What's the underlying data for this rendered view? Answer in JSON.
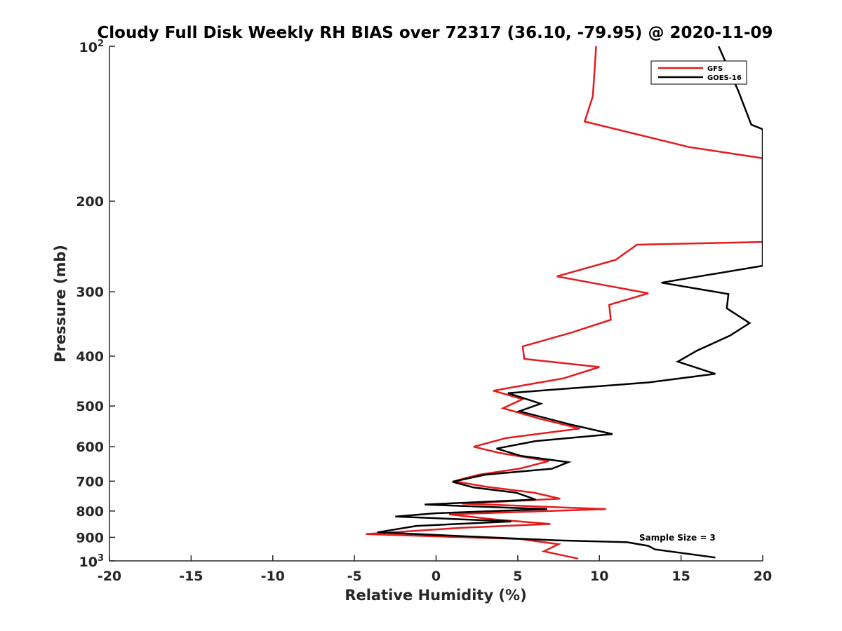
{
  "chart_data": {
    "type": "line",
    "title": "Cloudy Full Disk Weekly RH BIAS over 72317 (36.10, -79.95) @ 2020-11-09",
    "xlabel": "Relative Humidity (%)",
    "ylabel": "Pressure (mb)",
    "xlim": [
      -20,
      20
    ],
    "ylim": [
      100,
      1000
    ],
    "y_scale": "log",
    "y_reversed": true,
    "grid": false,
    "legend_position": "top-right",
    "x_ticks": [
      "-20",
      "-15",
      "-10",
      "-5",
      "0",
      "5",
      "10",
      "15",
      "20"
    ],
    "y_ticks": [
      {
        "value": 100,
        "base": "10",
        "exp": "2"
      },
      {
        "value": 200,
        "label": "200"
      },
      {
        "value": 300,
        "label": "300"
      },
      {
        "value": 400,
        "label": "400"
      },
      {
        "value": 500,
        "label": "500"
      },
      {
        "value": 600,
        "label": "600"
      },
      {
        "value": 700,
        "label": "700"
      },
      {
        "value": 800,
        "label": "800"
      },
      {
        "value": 900,
        "label": "900"
      },
      {
        "value": 1000,
        "base": "10",
        "exp": "3"
      }
    ],
    "series": [
      {
        "name": "GFS",
        "color": "#e41a1c",
        "points": [
          [
            9.8,
            100
          ],
          [
            9.6,
            125
          ],
          [
            9.1,
            140
          ],
          [
            15.5,
            157
          ],
          [
            20.0,
            165
          ],
          [
            20.0,
            240
          ],
          [
            12.3,
            243
          ],
          [
            11.0,
            260
          ],
          [
            7.4,
            280
          ],
          [
            13.0,
            302
          ],
          [
            10.6,
            318
          ],
          [
            10.7,
            340
          ],
          [
            8.3,
            360
          ],
          [
            5.3,
            383
          ],
          [
            5.4,
            405
          ],
          [
            10.0,
            420
          ],
          [
            7.8,
            442
          ],
          [
            5.5,
            455
          ],
          [
            3.5,
            467
          ],
          [
            5.3,
            485
          ],
          [
            4.1,
            505
          ],
          [
            6.4,
            530
          ],
          [
            8.8,
            553
          ],
          [
            4.3,
            577
          ],
          [
            2.3,
            600
          ],
          [
            3.9,
            617
          ],
          [
            6.9,
            640
          ],
          [
            5.1,
            662
          ],
          [
            2.6,
            680
          ],
          [
            1.1,
            700
          ],
          [
            3.1,
            718
          ],
          [
            6.0,
            737
          ],
          [
            7.6,
            757
          ],
          [
            1.6,
            774
          ],
          [
            10.4,
            793
          ],
          [
            0.8,
            812
          ],
          [
            3.5,
            830
          ],
          [
            7.0,
            848
          ],
          [
            1.6,
            862
          ],
          [
            -4.3,
            887
          ],
          [
            5.2,
            907
          ],
          [
            7.5,
            928
          ],
          [
            6.6,
            958
          ],
          [
            8.7,
            990
          ]
        ]
      },
      {
        "name": "GOES-16",
        "color": "#000000",
        "points": [
          [
            17.3,
            100
          ],
          [
            18.5,
            122
          ],
          [
            19.3,
            142
          ],
          [
            20.0,
            145
          ],
          [
            20.0,
            267
          ],
          [
            13.8,
            288
          ],
          [
            17.9,
            303
          ],
          [
            17.8,
            323
          ],
          [
            19.2,
            345
          ],
          [
            18.0,
            365
          ],
          [
            16.0,
            390
          ],
          [
            14.8,
            410
          ],
          [
            17.1,
            433
          ],
          [
            13.0,
            450
          ],
          [
            4.4,
            472
          ],
          [
            6.4,
            495
          ],
          [
            5.1,
            512
          ],
          [
            8.2,
            543
          ],
          [
            10.8,
            567
          ],
          [
            6.1,
            585
          ],
          [
            3.7,
            605
          ],
          [
            5.2,
            625
          ],
          [
            8.1,
            643
          ],
          [
            7.1,
            662
          ],
          [
            3.0,
            680
          ],
          [
            1.0,
            702
          ],
          [
            2.3,
            720
          ],
          [
            4.9,
            737
          ],
          [
            6.1,
            760
          ],
          [
            -0.7,
            777
          ],
          [
            6.8,
            793
          ],
          [
            0.0,
            808
          ],
          [
            -2.5,
            820
          ],
          [
            4.6,
            838
          ],
          [
            -1.2,
            855
          ],
          [
            -3.6,
            880
          ],
          [
            7.3,
            912
          ],
          [
            11.7,
            920
          ],
          [
            13.0,
            935
          ],
          [
            13.4,
            950
          ],
          [
            17.1,
            985
          ]
        ]
      }
    ],
    "annotation": "Sample Size = 3"
  }
}
